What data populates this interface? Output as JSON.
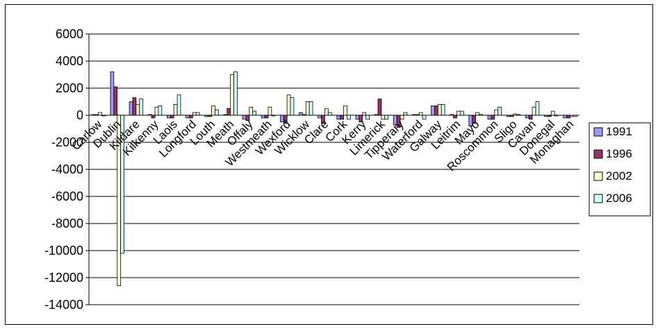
{
  "chart_data": {
    "type": "bar",
    "title": "",
    "xlabel": "",
    "ylabel": "",
    "ylim": [
      -14000,
      6000
    ],
    "yticks": [
      6000,
      4000,
      2000,
      0,
      -2000,
      -4000,
      -6000,
      -8000,
      -10000,
      -12000,
      -14000
    ],
    "grid": true,
    "legend": "right",
    "categories": [
      "Carlow",
      "Dublin",
      "Kildare",
      "Kilkenny",
      "Laois",
      "Longford",
      "Louth",
      "Meath",
      "Offaly",
      "Westmeath",
      "Wexford",
      "Wicklow",
      "Clare",
      "Cork",
      "Kerry",
      "Limerick",
      "Tipperary",
      "Waterford",
      "Galway",
      "Leitrim",
      "Mayo",
      "Roscommon",
      "Sligo",
      "Cavan",
      "Donegal",
      "Monaghan"
    ],
    "series": [
      {
        "name": "1991",
        "color": "#9999ff",
        "values": [
          50,
          3200,
          1000,
          50,
          -200,
          -200,
          -100,
          50,
          -300,
          -200,
          -500,
          200,
          -200,
          -300,
          -300,
          50,
          -700,
          50,
          700,
          50,
          -800,
          -300,
          -100,
          -200,
          -100,
          -200
        ]
      },
      {
        "name": "1996",
        "color": "#993366",
        "values": [
          50,
          2100,
          1300,
          -200,
          -200,
          -200,
          -100,
          500,
          -400,
          -200,
          -600,
          50,
          -600,
          -300,
          -500,
          1200,
          -900,
          50,
          700,
          -200,
          -600,
          -300,
          -100,
          -300,
          -100,
          -200
        ]
      },
      {
        "name": "2002",
        "color": "#ffffcc",
        "values": [
          200,
          -12600,
          800,
          600,
          800,
          200,
          700,
          3000,
          600,
          600,
          1500,
          1000,
          500,
          700,
          200,
          -300,
          -300,
          200,
          800,
          300,
          200,
          400,
          100,
          600,
          300,
          -100
        ]
      },
      {
        "name": "2006",
        "color": "#ccffff",
        "values": [
          -50,
          -10200,
          1200,
          700,
          1500,
          200,
          400,
          3200,
          300,
          -50,
          1300,
          1000,
          200,
          -300,
          -300,
          -300,
          200,
          -300,
          800,
          300,
          50,
          600,
          50,
          1000,
          -50,
          -100
        ]
      }
    ]
  }
}
